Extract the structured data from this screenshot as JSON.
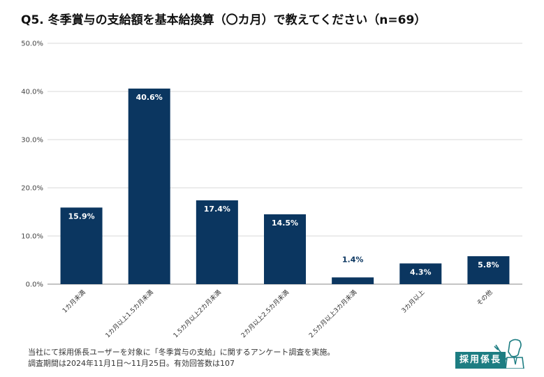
{
  "title": "Q5. 冬季賞与の支給額を基本給換算（〇カ月）で教えてください（n=69）",
  "footnote": {
    "line1": "当社にて採用係長ユーザーを対象に「冬季賞与の支給」に関するアンケート調査を実施。",
    "line2": "調査期間は2024年11月1日〜11月25日。有効回答数は107"
  },
  "logo": {
    "text": "採用係長",
    "icon": "manager-mascot-icon",
    "color": "#1d7d82"
  },
  "colors": {
    "bar": "#0b3660",
    "grid": "#d9d9d9",
    "axis": "#888888"
  },
  "chart_data": {
    "type": "bar",
    "categories": [
      "1カ月未満",
      "1カ月以上1.5カ月未満",
      "1.5カ月以上2カ月未満",
      "2カ月以上2.5カ月未満",
      "2.5カ月以上3カ月未満",
      "3カ月以上",
      "その他"
    ],
    "values": [
      15.9,
      40.6,
      17.4,
      14.5,
      1.4,
      4.3,
      5.8
    ],
    "value_labels": [
      "15.9%",
      "40.6%",
      "17.4%",
      "14.5%",
      "1.4%",
      "4.3%",
      "5.8%"
    ],
    "yticks": [
      "0.0%",
      "10.0%",
      "20.0%",
      "30.0%",
      "40.0%",
      "50.0%"
    ],
    "ylim": [
      0,
      50
    ],
    "grid": true
  }
}
